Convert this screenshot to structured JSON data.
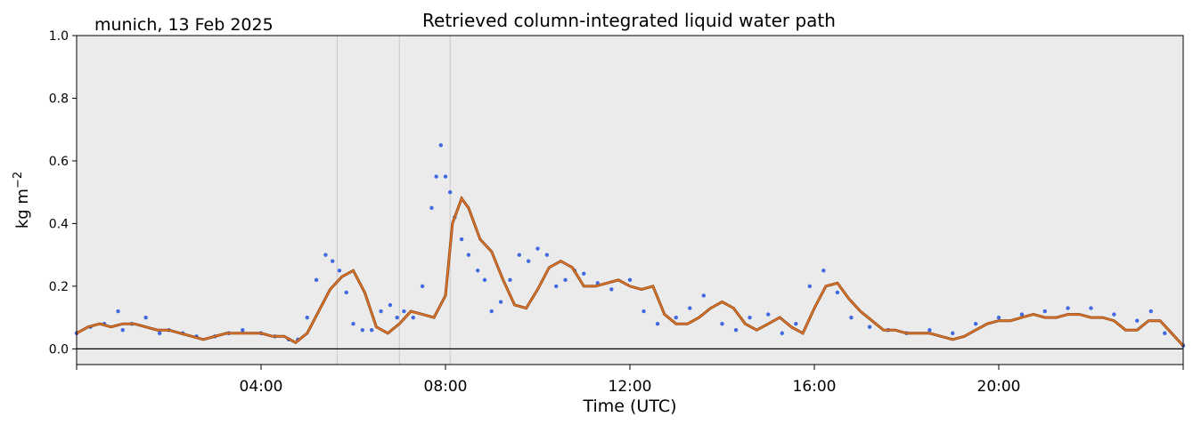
{
  "chart_data": {
    "type": "scatter",
    "title": "Retrieved column-integrated liquid water path",
    "subtitle": "munich, 13 Feb 2025",
    "xlabel": "Time (UTC)",
    "ylabel": "kg m",
    "ylabel_sup": "−2",
    "xlim": [
      0,
      24
    ],
    "ylim": [
      -0.05,
      1.0
    ],
    "grid": false,
    "x_ticks": [
      {
        "value": 4,
        "label": "04:00"
      },
      {
        "value": 8,
        "label": "08:00"
      },
      {
        "value": 12,
        "label": "12:00"
      },
      {
        "value": 16,
        "label": "16:00"
      },
      {
        "value": 20,
        "label": "20:00"
      }
    ],
    "y_ticks": [
      {
        "value": 0.0,
        "label": "0.0"
      },
      {
        "value": 0.2,
        "label": "0.2"
      },
      {
        "value": 0.4,
        "label": "0.4"
      },
      {
        "value": 0.6,
        "label": "0.6"
      },
      {
        "value": 0.8,
        "label": "0.8"
      },
      {
        "value": 1.0,
        "label": "1.0"
      }
    ],
    "zero_line": 0.0,
    "vertical_markers": [
      5.65,
      7.0,
      8.1
    ],
    "series": [
      {
        "kind": "raw-scatter",
        "color": "#4169E1",
        "x": [
          0.0,
          0.3,
          0.6,
          0.9,
          1.0,
          1.2,
          1.5,
          1.8,
          2.0,
          2.3,
          2.6,
          3.0,
          3.3,
          3.6,
          4.0,
          4.3,
          4.6,
          4.8,
          5.0,
          5.2,
          5.4,
          5.55,
          5.7,
          5.85,
          6.0,
          6.2,
          6.4,
          6.6,
          6.8,
          6.95,
          7.1,
          7.3,
          7.5,
          7.7,
          7.8,
          7.9,
          8.0,
          8.1,
          8.2,
          8.35,
          8.5,
          8.7,
          8.85,
          9.0,
          9.2,
          9.4,
          9.6,
          9.8,
          10.0,
          10.2,
          10.4,
          10.6,
          10.8,
          11.0,
          11.3,
          11.6,
          12.0,
          12.3,
          12.6,
          13.0,
          13.3,
          13.6,
          14.0,
          14.3,
          14.6,
          15.0,
          15.3,
          15.6,
          15.9,
          16.2,
          16.5,
          16.8,
          17.2,
          17.6,
          18.0,
          18.5,
          19.0,
          19.5,
          20.0,
          20.5,
          21.0,
          21.5,
          22.0,
          22.5,
          23.0,
          23.3,
          23.6,
          24.0
        ],
        "y": [
          0.05,
          0.07,
          0.08,
          0.12,
          0.06,
          0.08,
          0.1,
          0.05,
          0.06,
          0.05,
          0.04,
          0.04,
          0.05,
          0.06,
          0.05,
          0.04,
          0.03,
          0.03,
          0.1,
          0.22,
          0.3,
          0.28,
          0.25,
          0.18,
          0.08,
          0.06,
          0.06,
          0.12,
          0.14,
          0.1,
          0.12,
          0.1,
          0.2,
          0.45,
          0.55,
          0.65,
          0.55,
          0.5,
          0.42,
          0.35,
          0.3,
          0.25,
          0.22,
          0.12,
          0.15,
          0.22,
          0.3,
          0.28,
          0.32,
          0.3,
          0.2,
          0.22,
          0.25,
          0.24,
          0.21,
          0.19,
          0.22,
          0.12,
          0.08,
          0.1,
          0.13,
          0.17,
          0.08,
          0.06,
          0.1,
          0.11,
          0.05,
          0.08,
          0.2,
          0.25,
          0.18,
          0.1,
          0.07,
          0.06,
          0.05,
          0.06,
          0.05,
          0.08,
          0.1,
          0.11,
          0.12,
          0.13,
          0.13,
          0.11,
          0.09,
          0.12,
          0.05,
          0.01
        ]
      },
      {
        "kind": "smoothed-line",
        "color": "#E2772B",
        "outline": "#8B4513",
        "x": [
          0.0,
          0.25,
          0.5,
          0.75,
          1.0,
          1.25,
          1.5,
          1.75,
          2.0,
          2.25,
          2.5,
          2.75,
          3.0,
          3.25,
          3.5,
          3.75,
          4.0,
          4.25,
          4.5,
          4.75,
          5.0,
          5.25,
          5.5,
          5.75,
          6.0,
          6.25,
          6.5,
          6.75,
          7.0,
          7.25,
          7.5,
          7.75,
          8.0,
          8.15,
          8.35,
          8.5,
          8.75,
          9.0,
          9.25,
          9.5,
          9.75,
          10.0,
          10.25,
          10.5,
          10.75,
          11.0,
          11.25,
          11.5,
          11.75,
          12.0,
          12.25,
          12.5,
          12.75,
          13.0,
          13.25,
          13.5,
          13.75,
          14.0,
          14.25,
          14.5,
          14.75,
          15.0,
          15.25,
          15.5,
          15.75,
          16.0,
          16.25,
          16.5,
          16.75,
          17.0,
          17.25,
          17.5,
          17.75,
          18.0,
          18.25,
          18.5,
          18.75,
          19.0,
          19.25,
          19.5,
          19.75,
          20.0,
          20.25,
          20.5,
          20.75,
          21.0,
          21.25,
          21.5,
          21.75,
          22.0,
          22.25,
          22.5,
          22.75,
          23.0,
          23.25,
          23.5,
          23.75,
          24.0
        ],
        "y": [
          0.05,
          0.07,
          0.08,
          0.07,
          0.08,
          0.08,
          0.07,
          0.06,
          0.06,
          0.05,
          0.04,
          0.03,
          0.04,
          0.05,
          0.05,
          0.05,
          0.05,
          0.04,
          0.04,
          0.02,
          0.05,
          0.12,
          0.19,
          0.23,
          0.25,
          0.18,
          0.07,
          0.05,
          0.08,
          0.12,
          0.11,
          0.1,
          0.17,
          0.4,
          0.48,
          0.45,
          0.35,
          0.31,
          0.22,
          0.14,
          0.13,
          0.19,
          0.26,
          0.28,
          0.26,
          0.2,
          0.2,
          0.21,
          0.22,
          0.2,
          0.19,
          0.2,
          0.11,
          0.08,
          0.08,
          0.1,
          0.13,
          0.15,
          0.13,
          0.08,
          0.06,
          0.08,
          0.1,
          0.07,
          0.05,
          0.13,
          0.2,
          0.21,
          0.16,
          0.12,
          0.09,
          0.06,
          0.06,
          0.05,
          0.05,
          0.05,
          0.04,
          0.03,
          0.04,
          0.06,
          0.08,
          0.09,
          0.09,
          0.1,
          0.11,
          0.1,
          0.1,
          0.11,
          0.11,
          0.1,
          0.1,
          0.09,
          0.06,
          0.06,
          0.09,
          0.09,
          0.05,
          0.01
        ]
      }
    ]
  }
}
